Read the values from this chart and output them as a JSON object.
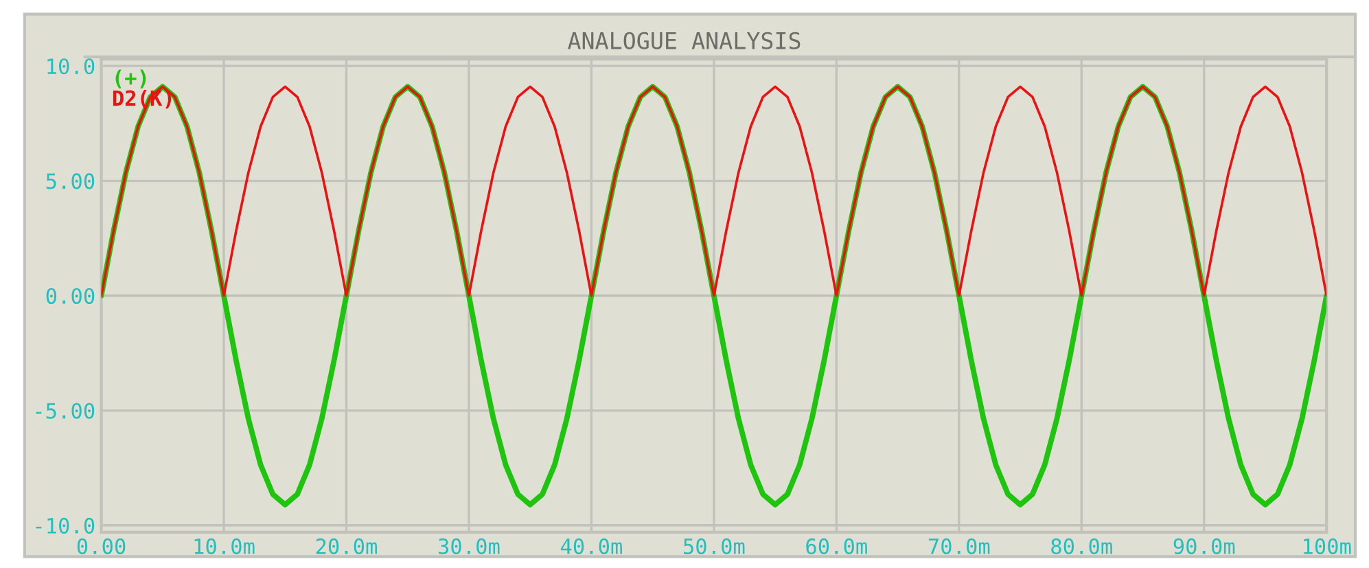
{
  "chart_data": {
    "type": "line",
    "title": "ANALOGUE ANALYSIS",
    "x": [
      0,
      1,
      2,
      3,
      4,
      5,
      6,
      7,
      8,
      9,
      10,
      11,
      12,
      13,
      14,
      15,
      16,
      17,
      18,
      19,
      20,
      21,
      22,
      23,
      24,
      25,
      26,
      27,
      28,
      29,
      30,
      31,
      32,
      33,
      34,
      35,
      36,
      37,
      38,
      39,
      40,
      41,
      42,
      43,
      44,
      45,
      46,
      47,
      48,
      49,
      50,
      51,
      52,
      53,
      54,
      55,
      56,
      57,
      58,
      59,
      60,
      61,
      62,
      63,
      64,
      65,
      66,
      67,
      68,
      69,
      70,
      71,
      72,
      73,
      74,
      75,
      76,
      77,
      78,
      79,
      80,
      81,
      82,
      83,
      84,
      85,
      86,
      87,
      88,
      89,
      90,
      91,
      92,
      93,
      94,
      95,
      96,
      97,
      98,
      99,
      100
    ],
    "series": [
      {
        "name": "(+)",
        "color": "#1fc40f",
        "values": [
          0,
          2.81,
          5.35,
          7.36,
          8.65,
          9.1,
          8.65,
          7.36,
          5.35,
          2.81,
          0,
          -2.81,
          -5.35,
          -7.36,
          -8.65,
          -9.1,
          -8.65,
          -7.36,
          -5.35,
          -2.81,
          0,
          2.81,
          5.35,
          7.36,
          8.65,
          9.1,
          8.65,
          7.36,
          5.35,
          2.81,
          0,
          -2.81,
          -5.35,
          -7.36,
          -8.65,
          -9.1,
          -8.65,
          -7.36,
          -5.35,
          -2.81,
          0,
          2.81,
          5.35,
          7.36,
          8.65,
          9.1,
          8.65,
          7.36,
          5.35,
          2.81,
          0,
          -2.81,
          -5.35,
          -7.36,
          -8.65,
          -9.1,
          -8.65,
          -7.36,
          -5.35,
          -2.81,
          0,
          2.81,
          5.35,
          7.36,
          8.65,
          9.1,
          8.65,
          7.36,
          5.35,
          2.81,
          0,
          -2.81,
          -5.35,
          -7.36,
          -8.65,
          -9.1,
          -8.65,
          -7.36,
          -5.35,
          -2.81,
          0,
          2.81,
          5.35,
          7.36,
          8.65,
          9.1,
          8.65,
          7.36,
          5.35,
          2.81,
          0,
          -2.81,
          -5.35,
          -7.36,
          -8.65,
          -9.1,
          -8.65,
          -7.36,
          -5.35,
          -2.81,
          0
        ]
      },
      {
        "name": "D2(K)",
        "color": "#ee1111",
        "values": [
          0,
          2.81,
          5.35,
          7.36,
          8.65,
          9.1,
          8.65,
          7.36,
          5.35,
          2.81,
          0,
          2.81,
          5.35,
          7.36,
          8.65,
          9.1,
          8.65,
          7.36,
          5.35,
          2.81,
          0,
          2.81,
          5.35,
          7.36,
          8.65,
          9.1,
          8.65,
          7.36,
          5.35,
          2.81,
          0,
          2.81,
          5.35,
          7.36,
          8.65,
          9.1,
          8.65,
          7.36,
          5.35,
          2.81,
          0,
          2.81,
          5.35,
          7.36,
          8.65,
          9.1,
          8.65,
          7.36,
          5.35,
          2.81,
          0,
          2.81,
          5.35,
          7.36,
          8.65,
          9.1,
          8.65,
          7.36,
          5.35,
          2.81,
          0,
          2.81,
          5.35,
          7.36,
          8.65,
          9.1,
          8.65,
          7.36,
          5.35,
          2.81,
          0,
          2.81,
          5.35,
          7.36,
          8.65,
          9.1,
          8.65,
          7.36,
          5.35,
          2.81,
          0,
          2.81,
          5.35,
          7.36,
          8.65,
          9.1,
          8.65,
          7.36,
          5.35,
          2.81,
          0,
          2.81,
          5.35,
          7.36,
          8.65,
          9.1,
          8.65,
          7.36,
          5.35,
          2.81,
          0
        ]
      }
    ],
    "xlim": [
      0,
      100
    ],
    "xticks": [
      {
        "value": 0,
        "label": "0.00"
      },
      {
        "value": 10,
        "label": "10.0m"
      },
      {
        "value": 20,
        "label": "20.0m"
      },
      {
        "value": 30,
        "label": "30.0m"
      },
      {
        "value": 40,
        "label": "40.0m"
      },
      {
        "value": 50,
        "label": "50.0m"
      },
      {
        "value": 60,
        "label": "60.0m"
      },
      {
        "value": 70,
        "label": "70.0m"
      },
      {
        "value": 80,
        "label": "80.0m"
      },
      {
        "value": 90,
        "label": "90.0m"
      },
      {
        "value": 100,
        "label": "100m"
      }
    ],
    "ylim": [
      -10.3,
      10.3
    ],
    "yticks": [
      {
        "value": -10,
        "label": "-10.0"
      },
      {
        "value": -5,
        "label": "-5.00"
      },
      {
        "value": 0,
        "label": "0.00"
      },
      {
        "value": 5,
        "label": "5.00"
      },
      {
        "value": 10,
        "label": "10.0"
      }
    ],
    "grid": true,
    "legend": "top left",
    "marker": "none",
    "line_style": "solid"
  }
}
